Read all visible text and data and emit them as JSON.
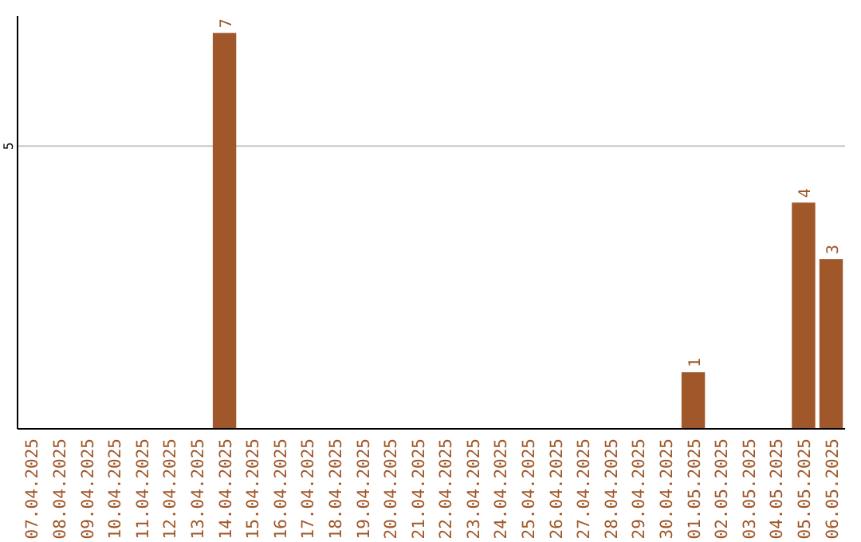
{
  "chart_data": {
    "type": "bar",
    "categories": [
      "07.04.2025",
      "08.04.2025",
      "09.04.2025",
      "10.04.2025",
      "11.04.2025",
      "12.04.2025",
      "13.04.2025",
      "14.04.2025",
      "15.04.2025",
      "16.04.2025",
      "17.04.2025",
      "18.04.2025",
      "19.04.2025",
      "20.04.2025",
      "21.04.2025",
      "22.04.2025",
      "23.04.2025",
      "24.04.2025",
      "25.04.2025",
      "26.04.2025",
      "27.04.2025",
      "28.04.2025",
      "29.04.2025",
      "30.04.2025",
      "01.05.2025",
      "02.05.2025",
      "03.05.2025",
      "04.05.2025",
      "05.05.2025",
      "06.05.2025"
    ],
    "values": [
      0,
      0,
      0,
      0,
      0,
      0,
      0,
      7,
      0,
      0,
      0,
      0,
      0,
      0,
      0,
      0,
      0,
      0,
      0,
      0,
      0,
      0,
      0,
      0,
      1,
      0,
      0,
      0,
      4,
      3
    ],
    "value_labels": [
      null,
      null,
      null,
      null,
      null,
      null,
      null,
      "7",
      null,
      null,
      null,
      null,
      null,
      null,
      null,
      null,
      null,
      null,
      null,
      null,
      null,
      null,
      null,
      null,
      "1",
      null,
      null,
      null,
      "4",
      "3"
    ],
    "color": "#a0582a",
    "ylim": [
      0,
      7.3
    ],
    "yticks": [
      5
    ],
    "grid": "y"
  }
}
